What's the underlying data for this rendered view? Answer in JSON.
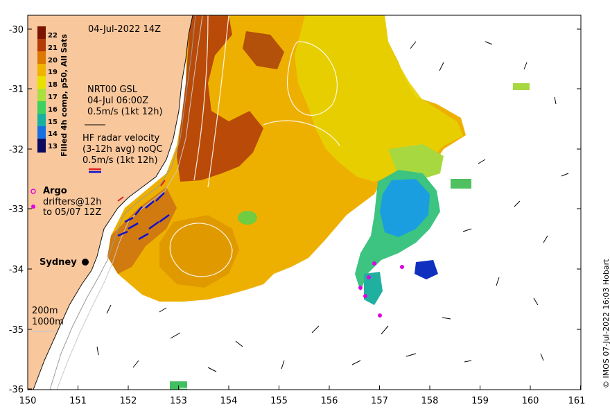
{
  "map": {
    "title": "04-Jul-2022 14Z",
    "x_ticks": [
      "150",
      "151",
      "152",
      "153",
      "154",
      "155",
      "156",
      "157",
      "158",
      "159",
      "160",
      "161"
    ],
    "y_ticks": [
      "-30",
      "-31",
      "-32",
      "-33",
      "-34",
      "-35",
      "-36"
    ],
    "colorbar": {
      "title": "Filled 4h comp, p50, All Sats",
      "labels": [
        "22",
        "21",
        "20",
        "19",
        "18",
        "17",
        "16",
        "15",
        "14",
        "13"
      ],
      "colors": [
        "#7a1400",
        "#b43a06",
        "#dc7800",
        "#f0b400",
        "#e8e000",
        "#a8e040",
        "#40d060",
        "#18b0a0",
        "#1870e0",
        "#1020b0",
        "#0a0a60"
      ]
    },
    "legend": {
      "nrt_label": "NRT00 GSL",
      "nrt_time": "04-Jul 06:00Z",
      "nrt_scale": "0.5m/s (1kt 12h)",
      "hf_label": "HF radar velocity",
      "hf_avg": "(3-12h avg) noQC",
      "hf_scale": "0.5m/s (1kt 12h)",
      "argo_label": "Argo",
      "drifter_label": "drifters@12h",
      "drifter_range": "to 05/07 12Z",
      "city": "Sydney",
      "depth_200": "200m",
      "depth_1000": "1000m"
    },
    "credit": "© IMOS 07-Jul-2022 16:03 Hobart",
    "colors": {
      "land": "#f9c79c",
      "warm": "#f0b400",
      "cool": "#18b0a0",
      "drifter": "#e000e0",
      "hf_red": "#e02020",
      "hf_blue": "#1010d0"
    }
  }
}
